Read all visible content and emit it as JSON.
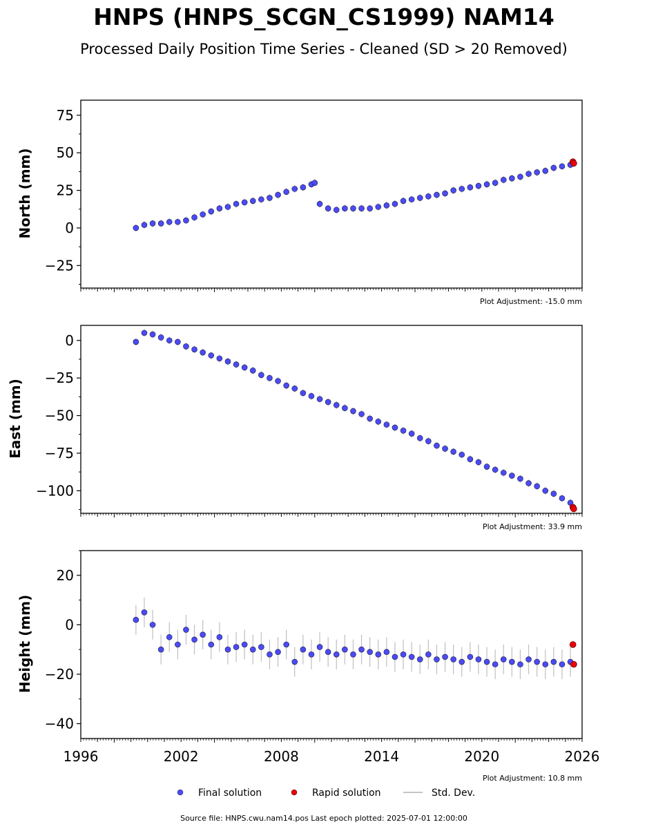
{
  "figure": {
    "title": "HNPS (HNPS_SCGN_CS1999) NAM14",
    "subtitle": "Processed Daily Position Time Series - Cleaned (SD > 20 Removed)",
    "source": "Source file: HNPS.cwu.nam14.pos  Last epoch plotted: 2025-07-01 12:00:00"
  },
  "legend": {
    "final": "Final solution",
    "rapid": "Rapid solution",
    "std": "Std. Dev."
  },
  "colors": {
    "final": "#4b4bf5",
    "rapid": "#e8000b",
    "std": "#b0b0b0"
  },
  "chart_data": [
    {
      "type": "scatter",
      "ylabel": "North (mm)",
      "adjustment": "Plot Adjustment: -15.0 mm",
      "xlim": [
        1996,
        2026
      ],
      "ylim": [
        -40,
        85
      ],
      "yticks": [
        75,
        50,
        25,
        0,
        -25
      ],
      "ytick_labels": [
        "75",
        "50",
        "25",
        "0",
        "−25"
      ],
      "series": [
        {
          "name": "Final solution",
          "x": [
            1999.3,
            1999.8,
            2000.3,
            2000.8,
            2001.3,
            2001.8,
            2002.3,
            2002.8,
            2003.3,
            2003.8,
            2004.3,
            2004.8,
            2005.3,
            2005.8,
            2006.3,
            2006.8,
            2007.3,
            2007.8,
            2008.3,
            2008.8,
            2009.3,
            2009.8,
            2010.0,
            2010.3,
            2010.8,
            2011.3,
            2011.8,
            2012.3,
            2012.8,
            2013.3,
            2013.8,
            2014.3,
            2014.8,
            2015.3,
            2015.8,
            2016.3,
            2016.8,
            2017.3,
            2017.8,
            2018.3,
            2018.8,
            2019.3,
            2019.8,
            2020.3,
            2020.8,
            2021.3,
            2021.8,
            2022.3,
            2022.8,
            2023.3,
            2023.8,
            2024.3,
            2024.8,
            2025.3
          ],
          "y": [
            0,
            2,
            3,
            3,
            4,
            4,
            5,
            7,
            9,
            11,
            13,
            14,
            16,
            17,
            18,
            19,
            20,
            22,
            24,
            26,
            27,
            29,
            30,
            16,
            13,
            12,
            13,
            13,
            13,
            13,
            14,
            15,
            16,
            18,
            19,
            20,
            21,
            22,
            23,
            25,
            26,
            27,
            28,
            29,
            30,
            32,
            33,
            34,
            36,
            37,
            38,
            40,
            41,
            42
          ]
        },
        {
          "name": "Rapid solution",
          "x": [
            2025.45,
            2025.5
          ],
          "y": [
            44,
            43
          ]
        }
      ]
    },
    {
      "type": "scatter",
      "ylabel": "East (mm)",
      "adjustment": "Plot Adjustment: 33.9 mm",
      "xlim": [
        1996,
        2026
      ],
      "ylim": [
        -115,
        10
      ],
      "yticks": [
        0,
        -25,
        -50,
        -75,
        -100
      ],
      "ytick_labels": [
        "0",
        "−25",
        "−50",
        "−75",
        "−100"
      ],
      "series": [
        {
          "name": "Final solution",
          "x": [
            1999.3,
            1999.8,
            2000.3,
            2000.8,
            2001.3,
            2001.8,
            2002.3,
            2002.8,
            2003.3,
            2003.8,
            2004.3,
            2004.8,
            2005.3,
            2005.8,
            2006.3,
            2006.8,
            2007.3,
            2007.8,
            2008.3,
            2008.8,
            2009.3,
            2009.8,
            2010.3,
            2010.8,
            2011.3,
            2011.8,
            2012.3,
            2012.8,
            2013.3,
            2013.8,
            2014.3,
            2014.8,
            2015.3,
            2015.8,
            2016.3,
            2016.8,
            2017.3,
            2017.8,
            2018.3,
            2018.8,
            2019.3,
            2019.8,
            2020.3,
            2020.8,
            2021.3,
            2021.8,
            2022.3,
            2022.8,
            2023.3,
            2023.8,
            2024.3,
            2024.8,
            2025.3
          ],
          "y": [
            -1,
            5,
            4,
            2,
            0,
            -1,
            -4,
            -6,
            -8,
            -10,
            -12,
            -14,
            -16,
            -18,
            -20,
            -23,
            -25,
            -27,
            -30,
            -32,
            -35,
            -37,
            -39,
            -41,
            -43,
            -45,
            -47,
            -49,
            -52,
            -54,
            -56,
            -58,
            -60,
            -62,
            -65,
            -67,
            -70,
            -72,
            -74,
            -76,
            -79,
            -81,
            -84,
            -86,
            -88,
            -90,
            -92,
            -95,
            -97,
            -100,
            -102,
            -105,
            -108
          ]
        },
        {
          "name": "Rapid solution",
          "x": [
            2025.45,
            2025.5
          ],
          "y": [
            -111,
            -112
          ]
        }
      ]
    },
    {
      "type": "scatter",
      "ylabel": "Height (mm)",
      "adjustment": "Plot Adjustment: 10.8 mm",
      "xlim": [
        1996,
        2026
      ],
      "ylim": [
        -46,
        30
      ],
      "yticks": [
        20,
        0,
        -20,
        -40
      ],
      "ytick_labels": [
        "20",
        "0",
        "−20",
        "−40"
      ],
      "xticks": [
        1996,
        2002,
        2008,
        2014,
        2020,
        2026
      ],
      "xtick_labels": [
        "1996",
        "2002",
        "2008",
        "2014",
        "2020",
        "2026"
      ],
      "series": [
        {
          "name": "Final solution",
          "x": [
            1999.3,
            1999.8,
            2000.3,
            2000.8,
            2001.3,
            2001.8,
            2002.3,
            2002.8,
            2003.3,
            2003.8,
            2004.3,
            2004.8,
            2005.3,
            2005.8,
            2006.3,
            2006.8,
            2007.3,
            2007.8,
            2008.3,
            2008.8,
            2009.3,
            2009.8,
            2010.3,
            2010.8,
            2011.3,
            2011.8,
            2012.3,
            2012.8,
            2013.3,
            2013.8,
            2014.3,
            2014.8,
            2015.3,
            2015.8,
            2016.3,
            2016.8,
            2017.3,
            2017.8,
            2018.3,
            2018.8,
            2019.3,
            2019.8,
            2020.3,
            2020.8,
            2021.3,
            2021.8,
            2022.3,
            2022.8,
            2023.3,
            2023.8,
            2024.3,
            2024.8,
            2025.3
          ],
          "y": [
            2,
            5,
            0,
            -10,
            -5,
            -8,
            -2,
            -6,
            -4,
            -8,
            -5,
            -10,
            -9,
            -8,
            -10,
            -9,
            -12,
            -11,
            -8,
            -15,
            -10,
            -12,
            -9,
            -11,
            -12,
            -10,
            -12,
            -10,
            -11,
            -12,
            -11,
            -13,
            -12,
            -13,
            -14,
            -12,
            -14,
            -13,
            -14,
            -15,
            -13,
            -14,
            -15,
            -16,
            -14,
            -15,
            -16,
            -14,
            -15,
            -16,
            -15,
            -16,
            -15
          ]
        },
        {
          "name": "Rapid solution",
          "x": [
            2025.45,
            2025.5
          ],
          "y": [
            -8,
            -16
          ]
        }
      ]
    }
  ]
}
